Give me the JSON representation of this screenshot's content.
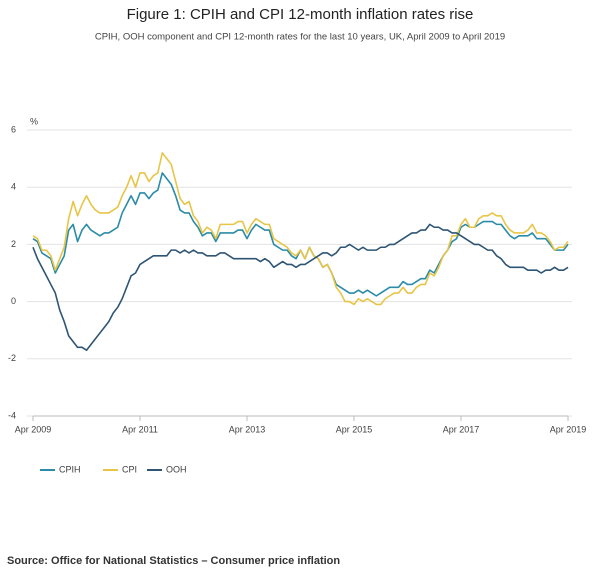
{
  "chart_data": {
    "type": "line",
    "title": "Figure 1: CPIH and CPI 12-month inflation rates rise",
    "subtitle": "CPIH, OOH component and CPI 12-month rates for the last 10 years, UK, April 2009 to April 2019",
    "y_label": "%",
    "source": "Source: Office for National Statistics – Consumer price inflation",
    "categories": [
      "Apr 2009",
      null,
      null,
      null,
      null,
      null,
      null,
      null,
      null,
      null,
      null,
      null,
      null,
      null,
      null,
      null,
      null,
      null,
      null,
      null,
      null,
      null,
      null,
      null,
      "Apr 2011",
      null,
      null,
      null,
      null,
      null,
      null,
      null,
      null,
      null,
      null,
      null,
      null,
      null,
      null,
      null,
      null,
      null,
      null,
      null,
      null,
      null,
      null,
      null,
      "Apr 2013",
      null,
      null,
      null,
      null,
      null,
      null,
      null,
      null,
      null,
      null,
      null,
      null,
      null,
      null,
      null,
      null,
      null,
      null,
      null,
      null,
      null,
      null,
      null,
      "Apr 2015",
      null,
      null,
      null,
      null,
      null,
      null,
      null,
      null,
      null,
      null,
      null,
      null,
      null,
      null,
      null,
      null,
      null,
      null,
      null,
      null,
      null,
      null,
      null,
      "Apr 2017",
      null,
      null,
      null,
      null,
      null,
      null,
      null,
      null,
      null,
      null,
      null,
      null,
      null,
      null,
      null,
      null,
      null,
      null,
      null,
      null,
      null,
      null,
      null,
      "Apr 2019"
    ],
    "series": [
      {
        "name": "CPIH",
        "color": "#2a8ca7",
        "values": [
          2.2,
          2.1,
          1.7,
          1.6,
          1.5,
          1.0,
          1.3,
          1.6,
          2.5,
          2.7,
          2.1,
          2.5,
          2.7,
          2.5,
          2.4,
          2.3,
          2.4,
          2.4,
          2.5,
          2.6,
          3.1,
          3.4,
          3.7,
          3.4,
          3.8,
          3.8,
          3.6,
          3.8,
          3.9,
          4.5,
          4.3,
          4.1,
          3.7,
          3.2,
          3.1,
          3.1,
          2.8,
          2.6,
          2.3,
          2.4,
          2.4,
          2.1,
          2.4,
          2.4,
          2.4,
          2.4,
          2.5,
          2.5,
          2.2,
          2.5,
          2.7,
          2.6,
          2.5,
          2.5,
          2.0,
          1.9,
          1.8,
          1.8,
          1.6,
          1.5,
          1.8,
          1.5,
          1.9,
          1.6,
          1.5,
          1.2,
          1.3,
          1.0,
          0.6,
          0.5,
          0.4,
          0.3,
          0.3,
          0.4,
          0.3,
          0.4,
          0.3,
          0.2,
          0.3,
          0.4,
          0.5,
          0.5,
          0.5,
          0.7,
          0.6,
          0.6,
          0.7,
          0.8,
          0.8,
          1.1,
          1.0,
          1.3,
          1.6,
          1.8,
          2.1,
          2.2,
          2.6,
          2.7,
          2.6,
          2.6,
          2.7,
          2.8,
          2.8,
          2.8,
          2.7,
          2.7,
          2.5,
          2.3,
          2.2,
          2.3,
          2.3,
          2.3,
          2.4,
          2.2,
          2.2,
          2.2,
          2.0,
          1.8,
          1.8,
          1.8,
          2.0
        ]
      },
      {
        "name": "CPI",
        "color": "#e8c547",
        "values": [
          2.3,
          2.2,
          1.8,
          1.8,
          1.6,
          1.1,
          1.5,
          1.9,
          2.9,
          3.5,
          3.0,
          3.4,
          3.7,
          3.4,
          3.2,
          3.1,
          3.1,
          3.1,
          3.2,
          3.3,
          3.7,
          4.0,
          4.4,
          4.0,
          4.5,
          4.5,
          4.2,
          4.4,
          4.5,
          5.2,
          5.0,
          4.8,
          4.2,
          3.6,
          3.4,
          3.5,
          3.0,
          2.8,
          2.4,
          2.6,
          2.5,
          2.2,
          2.7,
          2.7,
          2.7,
          2.7,
          2.8,
          2.8,
          2.4,
          2.7,
          2.9,
          2.8,
          2.7,
          2.7,
          2.2,
          2.1,
          2.0,
          1.9,
          1.7,
          1.6,
          1.8,
          1.5,
          1.9,
          1.6,
          1.5,
          1.2,
          1.3,
          1.0,
          0.5,
          0.3,
          0.0,
          0.0,
          -0.1,
          0.1,
          0.0,
          0.1,
          0.0,
          -0.1,
          -0.1,
          0.1,
          0.2,
          0.3,
          0.3,
          0.5,
          0.3,
          0.3,
          0.5,
          0.6,
          0.6,
          1.0,
          0.9,
          1.2,
          1.6,
          1.8,
          2.3,
          2.3,
          2.7,
          2.9,
          2.6,
          2.6,
          2.9,
          3.0,
          3.0,
          3.1,
          3.0,
          3.0,
          2.7,
          2.5,
          2.4,
          2.4,
          2.4,
          2.5,
          2.7,
          2.4,
          2.4,
          2.3,
          2.1,
          1.8,
          1.9,
          1.9,
          2.1
        ]
      },
      {
        "name": "OOH",
        "color": "#2e5573",
        "values": [
          1.9,
          1.5,
          1.2,
          0.9,
          0.6,
          0.3,
          -0.3,
          -0.7,
          -1.2,
          -1.4,
          -1.6,
          -1.6,
          -1.7,
          -1.5,
          -1.3,
          -1.1,
          -0.9,
          -0.7,
          -0.4,
          -0.2,
          0.1,
          0.5,
          0.9,
          1.0,
          1.3,
          1.4,
          1.5,
          1.6,
          1.6,
          1.6,
          1.6,
          1.8,
          1.8,
          1.7,
          1.8,
          1.7,
          1.8,
          1.7,
          1.7,
          1.6,
          1.6,
          1.6,
          1.7,
          1.7,
          1.6,
          1.5,
          1.5,
          1.5,
          1.5,
          1.5,
          1.5,
          1.4,
          1.5,
          1.4,
          1.2,
          1.3,
          1.4,
          1.3,
          1.3,
          1.2,
          1.3,
          1.3,
          1.4,
          1.5,
          1.6,
          1.7,
          1.7,
          1.6,
          1.7,
          1.9,
          1.9,
          2.0,
          1.9,
          1.8,
          1.9,
          1.8,
          1.8,
          1.8,
          1.9,
          1.9,
          2.0,
          2.0,
          2.1,
          2.2,
          2.3,
          2.4,
          2.4,
          2.5,
          2.5,
          2.7,
          2.6,
          2.6,
          2.5,
          2.5,
          2.4,
          2.4,
          2.3,
          2.2,
          2.1,
          2.0,
          2.0,
          1.9,
          1.8,
          1.8,
          1.6,
          1.5,
          1.3,
          1.2,
          1.2,
          1.2,
          1.2,
          1.1,
          1.1,
          1.1,
          1.0,
          1.1,
          1.1,
          1.2,
          1.1,
          1.1,
          1.2
        ]
      }
    ],
    "ylim": [
      -4,
      6
    ],
    "yticks": [
      -4,
      -2,
      0,
      2,
      4,
      6
    ],
    "grid": true
  }
}
